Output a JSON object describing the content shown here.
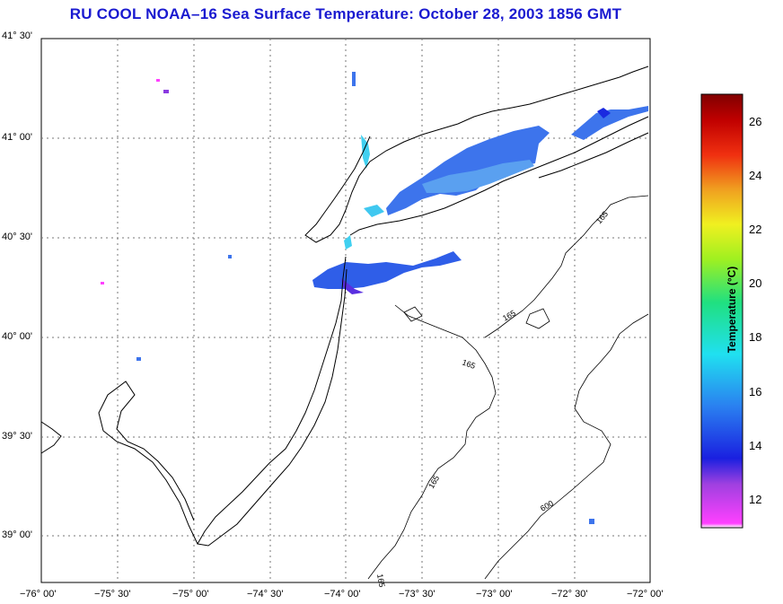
{
  "title": "RU COOL  NOAA–16  Sea Surface Temperature:  October 28, 2003 1856 GMT",
  "map": {
    "lat_labels": [
      "41° 30'",
      "41° 00'",
      "40° 30'",
      "40° 00'",
      "39° 30'",
      "39° 00'"
    ],
    "lon_labels": [
      "−76° 00'",
      "−75° 30'",
      "−75° 00'",
      "−74° 30'",
      "−74° 00'",
      "−73° 30'",
      "−73° 00'",
      "−72° 30'",
      "−72° 00'"
    ],
    "lat_range": [
      38.75,
      41.5
    ],
    "lon_range": [
      -76.0,
      -72.0
    ],
    "contour_labels": [
      "165",
      "165",
      "165",
      "165",
      "165",
      "600"
    ]
  },
  "colorbar": {
    "title": "Temperature (°C)",
    "ticks": [
      "26",
      "24",
      "22",
      "20",
      "18",
      "16",
      "14",
      "12"
    ],
    "range": [
      11,
      27
    ]
  },
  "colors": {
    "title": "#1a1ad0",
    "sst_main": "#3a6cf0",
    "sst_light": "#5a96f0",
    "sst_cyan": "#40d0f0",
    "sst_dark": "#1a2ae0",
    "magenta": "#ff00ff"
  }
}
